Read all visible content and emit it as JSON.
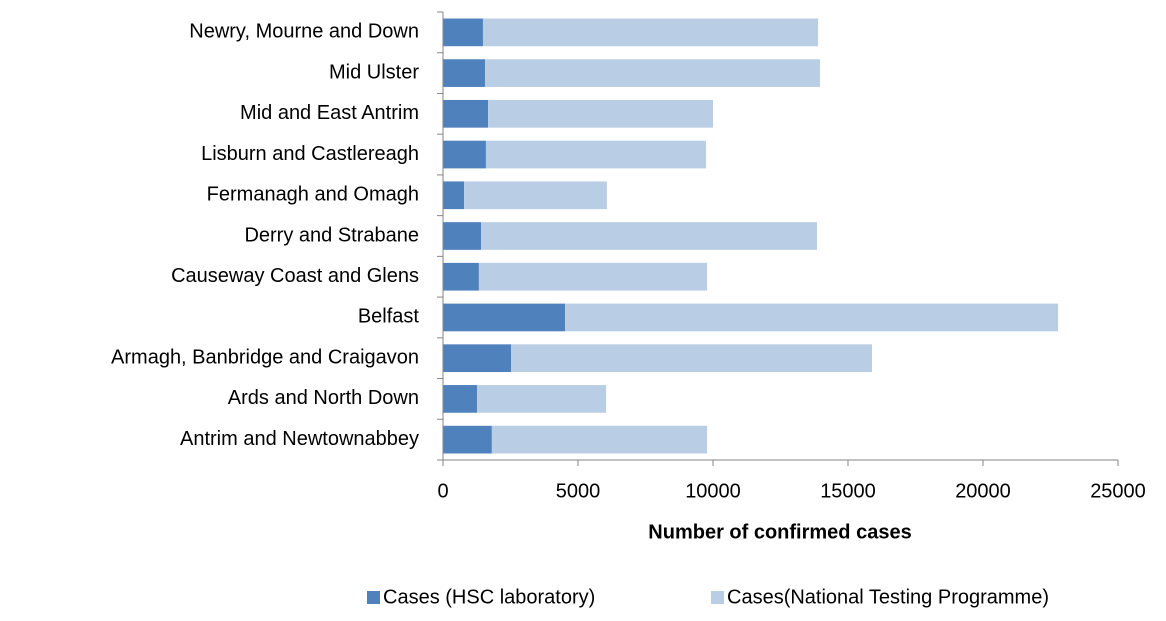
{
  "chart_data": {
    "type": "stacked-barh",
    "xlabel": "Number of confirmed cases",
    "categories": [
      "Antrim and Newtownabbey",
      "Ards and North Down",
      "Armagh, Banbridge and Craigavon",
      "Belfast",
      "Causeway Coast and Glens",
      "Derry and Strabane",
      "Fermanagh and Omagh",
      "Lisburn and Castlereagh",
      "Mid and East Antrim",
      "Mid Ulster",
      "Newry, Mourne and Down"
    ],
    "series": [
      {
        "name": "Cases (HSC laboratory)",
        "color": "#4f81bd",
        "values": [
          1810,
          1260,
          2520,
          4520,
          1330,
          1410,
          780,
          1590,
          1670,
          1560,
          1480
        ]
      },
      {
        "name": "Cases(National Testing Programme)",
        "color": "#b9cde5",
        "values": [
          7970,
          4780,
          13370,
          18260,
          8450,
          12440,
          5290,
          8150,
          8330,
          12400,
          12410
        ]
      }
    ],
    "xlim": [
      0,
      25000
    ],
    "xticks": [
      0,
      5000,
      10000,
      15000,
      20000,
      25000
    ],
    "legend": "bottom"
  }
}
